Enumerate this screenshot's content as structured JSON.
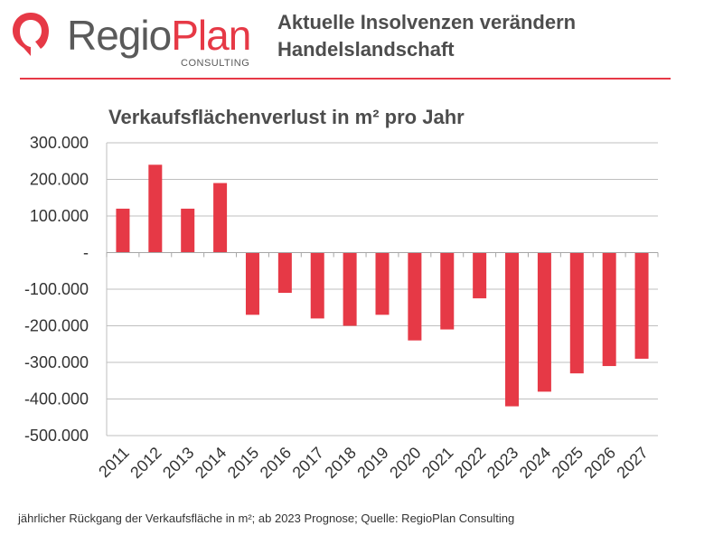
{
  "header": {
    "logo": {
      "name_part1": "Regio",
      "name_part2": "Plan",
      "subtitle": "CONSULTING"
    },
    "title_line1": "Aktuelle Insolvenzen verändern",
    "title_line2": "Handelslandschaft"
  },
  "colors": {
    "accent": "#e63946",
    "text": "#4d4d4d",
    "grid": "#bfbfbf"
  },
  "chart_data": {
    "type": "bar",
    "title": "Verkaufsflächenverlust in m² pro Jahr",
    "xlabel": "",
    "ylabel": "",
    "ylim": [
      -500000,
      300000
    ],
    "grid": true,
    "categories": [
      "2011",
      "2012",
      "2013",
      "2014",
      "2015",
      "2016",
      "2017",
      "2018",
      "2019",
      "2020",
      "2021",
      "2022",
      "2023",
      "2024",
      "2025",
      "2026",
      "2027"
    ],
    "values": [
      120000,
      240000,
      120000,
      190000,
      -170000,
      -110000,
      -180000,
      -200000,
      -170000,
      -240000,
      -210000,
      -125000,
      -420000,
      -380000,
      -330000,
      -310000,
      -290000
    ],
    "y_ticks": [
      300000,
      200000,
      100000,
      0,
      -100000,
      -200000,
      -300000,
      -400000,
      -500000
    ],
    "y_tick_labels": [
      "300.000",
      "200.000",
      "100.000",
      "-",
      "-100.000",
      "-200.000",
      "-300.000",
      "-400.000",
      "-500.000"
    ]
  },
  "footnote": "jährlicher Rückgang der Verkaufsfläche in m²; ab 2023 Prognose; Quelle: RegioPlan Consulting"
}
